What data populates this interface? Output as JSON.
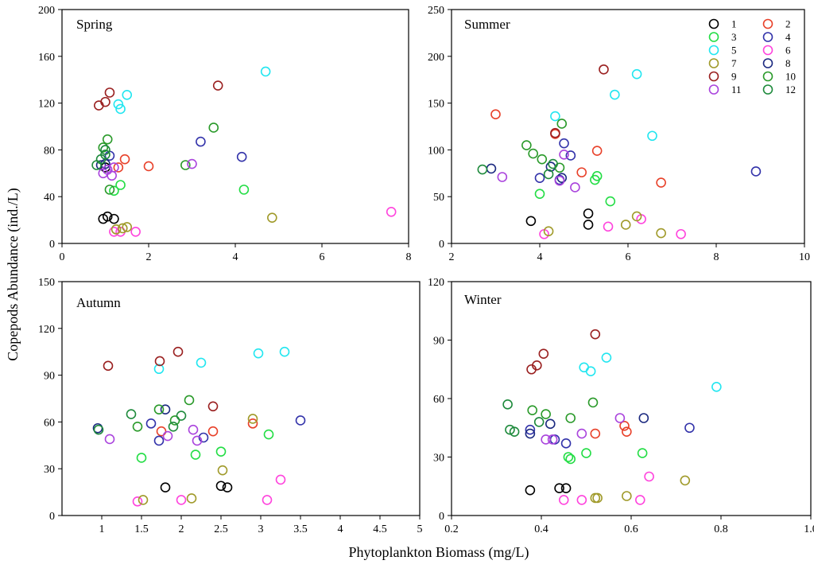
{
  "figure": {
    "ylabel": "Copepods Abundance (ind./L)",
    "xlabel": "Phytoplankton Biomass (mg/L)"
  },
  "legend": {
    "entries": [
      {
        "label": "1",
        "color": "#000000"
      },
      {
        "label": "2",
        "color": "#e8412a"
      },
      {
        "label": "3",
        "color": "#22dd44"
      },
      {
        "label": "4",
        "color": "#3333aa"
      },
      {
        "label": "5",
        "color": "#22e6f0"
      },
      {
        "label": "6",
        "color": "#ff44dd"
      },
      {
        "label": "7",
        "color": "#a09a2a"
      },
      {
        "label": "8",
        "color": "#1c2a80"
      },
      {
        "label": "9",
        "color": "#9a2020"
      },
      {
        "label": "10",
        "color": "#2a9a2a"
      },
      {
        "label": "11",
        "color": "#aa44dd"
      },
      {
        "label": "12",
        "color": "#1e8a3c"
      }
    ]
  },
  "chart_data": [
    {
      "type": "scatter",
      "title": "Spring",
      "xlim": [
        0,
        8
      ],
      "ylim": [
        0,
        200
      ],
      "xticks": [
        "0",
        "2",
        "4",
        "6",
        "8"
      ],
      "yticks": [
        "0",
        "40",
        "80",
        "120",
        "160",
        "200"
      ],
      "series": [
        {
          "name": "1",
          "points": [
            [
              0.95,
              21
            ],
            [
              1.05,
              23
            ],
            [
              1.2,
              21
            ],
            [
              1.0,
              65
            ]
          ]
        },
        {
          "name": "2",
          "points": [
            [
              1.45,
              72
            ],
            [
              2.0,
              66
            ],
            [
              1.3,
              65
            ]
          ]
        },
        {
          "name": "3",
          "points": [
            [
              1.2,
              45
            ],
            [
              1.35,
              50
            ],
            [
              4.2,
              46
            ]
          ]
        },
        {
          "name": "4",
          "points": [
            [
              1.1,
              75
            ],
            [
              3.2,
              87
            ],
            [
              4.15,
              74
            ]
          ]
        },
        {
          "name": "5",
          "points": [
            [
              1.5,
              127
            ],
            [
              1.3,
              119
            ],
            [
              1.35,
              115
            ],
            [
              4.7,
              147
            ]
          ]
        },
        {
          "name": "6",
          "points": [
            [
              1.2,
              10
            ],
            [
              1.35,
              10
            ],
            [
              1.7,
              10
            ],
            [
              7.6,
              27
            ]
          ]
        },
        {
          "name": "7",
          "points": [
            [
              1.25,
              12
            ],
            [
              1.4,
              13
            ],
            [
              1.5,
              14
            ],
            [
              4.85,
              22
            ]
          ]
        },
        {
          "name": "8",
          "points": [
            [
              0.9,
              67
            ],
            [
              1.0,
              68
            ]
          ]
        },
        {
          "name": "9",
          "points": [
            [
              0.85,
              118
            ],
            [
              1.0,
              121
            ],
            [
              1.1,
              129
            ],
            [
              3.6,
              135
            ]
          ]
        },
        {
          "name": "10",
          "points": [
            [
              0.95,
              82
            ],
            [
              1.05,
              89
            ],
            [
              2.85,
              67
            ],
            [
              3.5,
              99
            ],
            [
              1.1,
              46
            ]
          ]
        },
        {
          "name": "11",
          "points": [
            [
              0.95,
              60
            ],
            [
              1.05,
              63
            ],
            [
              1.15,
              58
            ],
            [
              1.2,
              65
            ],
            [
              3.0,
              68
            ]
          ]
        },
        {
          "name": "12",
          "points": [
            [
              0.8,
              67
            ],
            [
              0.9,
              72
            ],
            [
              1.0,
              80
            ],
            [
              1.0,
              76
            ]
          ]
        }
      ]
    },
    {
      "type": "scatter",
      "title": "Summer",
      "xlim": [
        2,
        10
      ],
      "ylim": [
        0,
        250
      ],
      "xticks": [
        "2",
        "4",
        "6",
        "8",
        "10"
      ],
      "yticks": [
        "0",
        "50",
        "100",
        "150",
        "200",
        "250"
      ],
      "series": [
        {
          "name": "1",
          "points": [
            [
              3.8,
              24
            ],
            [
              5.1,
              32
            ],
            [
              5.1,
              20
            ]
          ]
        },
        {
          "name": "2",
          "points": [
            [
              4.35,
              117
            ],
            [
              4.95,
              76
            ],
            [
              5.3,
              99
            ],
            [
              6.75,
              65
            ],
            [
              3.0,
              138
            ]
          ]
        },
        {
          "name": "3",
          "points": [
            [
              4.0,
              53
            ],
            [
              5.3,
              72
            ],
            [
              5.6,
              45
            ],
            [
              5.25,
              68
            ]
          ]
        },
        {
          "name": "4",
          "points": [
            [
              4.0,
              70
            ],
            [
              4.45,
              68
            ],
            [
              4.55,
              107
            ],
            [
              4.7,
              94
            ],
            [
              8.9,
              77
            ]
          ]
        },
        {
          "name": "5",
          "points": [
            [
              4.35,
              136
            ],
            [
              5.7,
              159
            ],
            [
              6.2,
              181
            ],
            [
              6.55,
              115
            ]
          ]
        },
        {
          "name": "6",
          "points": [
            [
              4.1,
              10
            ],
            [
              5.55,
              18
            ],
            [
              6.3,
              26
            ],
            [
              7.2,
              10
            ]
          ]
        },
        {
          "name": "7",
          "points": [
            [
              4.2,
              13
            ],
            [
              5.95,
              20
            ],
            [
              6.2,
              29
            ],
            [
              6.75,
              11
            ]
          ]
        },
        {
          "name": "8",
          "points": [
            [
              2.9,
              80
            ],
            [
              4.25,
              82
            ],
            [
              4.5,
              70
            ]
          ]
        },
        {
          "name": "9",
          "points": [
            [
              4.35,
              118
            ],
            [
              5.45,
              186
            ]
          ]
        },
        {
          "name": "10",
          "points": [
            [
              3.7,
              105
            ],
            [
              3.85,
              96
            ],
            [
              4.05,
              90
            ],
            [
              4.45,
              81
            ],
            [
              4.5,
              128
            ]
          ]
        },
        {
          "name": "11",
          "points": [
            [
              3.15,
              71
            ],
            [
              4.55,
              95
            ],
            [
              4.8,
              60
            ],
            [
              4.45,
              67
            ]
          ]
        },
        {
          "name": "12",
          "points": [
            [
              2.7,
              79
            ],
            [
              4.2,
              74
            ],
            [
              4.3,
              85
            ]
          ]
        }
      ]
    },
    {
      "type": "scatter",
      "title": "Autumn",
      "xlim": [
        0.5,
        5
      ],
      "ylim": [
        0,
        150
      ],
      "xticks": [
        "1",
        "1.5",
        "2",
        "2.5",
        "3",
        "3.5",
        "4",
        "4.5",
        "5"
      ],
      "yticks": [
        "0",
        "30",
        "60",
        "90",
        "120",
        "150"
      ],
      "series": [
        {
          "name": "1",
          "points": [
            [
              1.8,
              18
            ],
            [
              2.5,
              19
            ],
            [
              2.58,
              18
            ]
          ]
        },
        {
          "name": "2",
          "points": [
            [
              1.75,
              54
            ],
            [
              2.4,
              54
            ],
            [
              2.9,
              59
            ]
          ]
        },
        {
          "name": "3",
          "points": [
            [
              1.5,
              37
            ],
            [
              2.18,
              39
            ],
            [
              2.5,
              41
            ],
            [
              3.1,
              52
            ]
          ]
        },
        {
          "name": "4",
          "points": [
            [
              1.62,
              59
            ],
            [
              1.72,
              48
            ],
            [
              2.28,
              50
            ],
            [
              3.5,
              61
            ]
          ]
        },
        {
          "name": "5",
          "points": [
            [
              1.72,
              94
            ],
            [
              2.25,
              98
            ],
            [
              2.97,
              104
            ],
            [
              3.3,
              105
            ]
          ]
        },
        {
          "name": "6",
          "points": [
            [
              1.45,
              9
            ],
            [
              2.0,
              10
            ],
            [
              3.08,
              10
            ],
            [
              3.25,
              23
            ]
          ]
        },
        {
          "name": "7",
          "points": [
            [
              1.52,
              10
            ],
            [
              2.13,
              11
            ],
            [
              2.52,
              29
            ],
            [
              2.9,
              62
            ]
          ]
        },
        {
          "name": "8",
          "points": [
            [
              0.95,
              56
            ],
            [
              1.8,
              68
            ]
          ]
        },
        {
          "name": "9",
          "points": [
            [
              1.08,
              96
            ],
            [
              1.73,
              99
            ],
            [
              1.96,
              105
            ],
            [
              2.4,
              70
            ]
          ]
        },
        {
          "name": "10",
          "points": [
            [
              1.45,
              57
            ],
            [
              1.72,
              68
            ],
            [
              1.92,
              61
            ],
            [
              2.1,
              74
            ]
          ]
        },
        {
          "name": "11",
          "points": [
            [
              1.1,
              49
            ],
            [
              1.83,
              51
            ],
            [
              2.15,
              55
            ],
            [
              2.2,
              48
            ]
          ]
        },
        {
          "name": "12",
          "points": [
            [
              0.96,
              55
            ],
            [
              1.37,
              65
            ],
            [
              1.9,
              57
            ],
            [
              2.0,
              64
            ]
          ]
        }
      ]
    },
    {
      "type": "scatter",
      "title": "Winter",
      "xlim": [
        0.2,
        1.0
      ],
      "ylim": [
        0,
        120
      ],
      "xticks": [
        "0.2",
        "0.4",
        "0.6",
        "0.8",
        "1.0"
      ],
      "yticks": [
        "0",
        "30",
        "60",
        "90",
        "120"
      ],
      "series": [
        {
          "name": "1",
          "points": [
            [
              0.375,
              13
            ],
            [
              0.44,
              14
            ],
            [
              0.455,
              14
            ]
          ]
        },
        {
          "name": "2",
          "points": [
            [
              0.52,
              42
            ],
            [
              0.585,
              46
            ],
            [
              0.59,
              43
            ]
          ]
        },
        {
          "name": "3",
          "points": [
            [
              0.46,
              30
            ],
            [
              0.5,
              32
            ],
            [
              0.625,
              32
            ],
            [
              0.465,
              29
            ]
          ]
        },
        {
          "name": "4",
          "points": [
            [
              0.375,
              44
            ],
            [
              0.43,
              39
            ],
            [
              0.455,
              37
            ],
            [
              0.73,
              45
            ]
          ]
        },
        {
          "name": "5",
          "points": [
            [
              0.495,
              76
            ],
            [
              0.51,
              74
            ],
            [
              0.545,
              81
            ],
            [
              0.79,
              66
            ]
          ]
        },
        {
          "name": "6",
          "points": [
            [
              0.45,
              8
            ],
            [
              0.49,
              8
            ],
            [
              0.62,
              8
            ],
            [
              0.64,
              20
            ]
          ]
        },
        {
          "name": "7",
          "points": [
            [
              0.52,
              9
            ],
            [
              0.525,
              9
            ],
            [
              0.59,
              10
            ],
            [
              0.72,
              18
            ]
          ]
        },
        {
          "name": "8",
          "points": [
            [
              0.375,
              42
            ],
            [
              0.42,
              47
            ],
            [
              0.628,
              50
            ]
          ]
        },
        {
          "name": "9",
          "points": [
            [
              0.378,
              75
            ],
            [
              0.39,
              77
            ],
            [
              0.405,
              83
            ],
            [
              0.52,
              93
            ]
          ]
        },
        {
          "name": "10",
          "points": [
            [
              0.38,
              54
            ],
            [
              0.41,
              52
            ],
            [
              0.465,
              50
            ],
            [
              0.515,
              58
            ]
          ]
        },
        {
          "name": "11",
          "points": [
            [
              0.41,
              39
            ],
            [
              0.425,
              39
            ],
            [
              0.49,
              42
            ],
            [
              0.575,
              50
            ]
          ]
        },
        {
          "name": "12",
          "points": [
            [
              0.325,
              57
            ],
            [
              0.33,
              44
            ],
            [
              0.34,
              43
            ],
            [
              0.395,
              48
            ]
          ]
        }
      ]
    }
  ]
}
